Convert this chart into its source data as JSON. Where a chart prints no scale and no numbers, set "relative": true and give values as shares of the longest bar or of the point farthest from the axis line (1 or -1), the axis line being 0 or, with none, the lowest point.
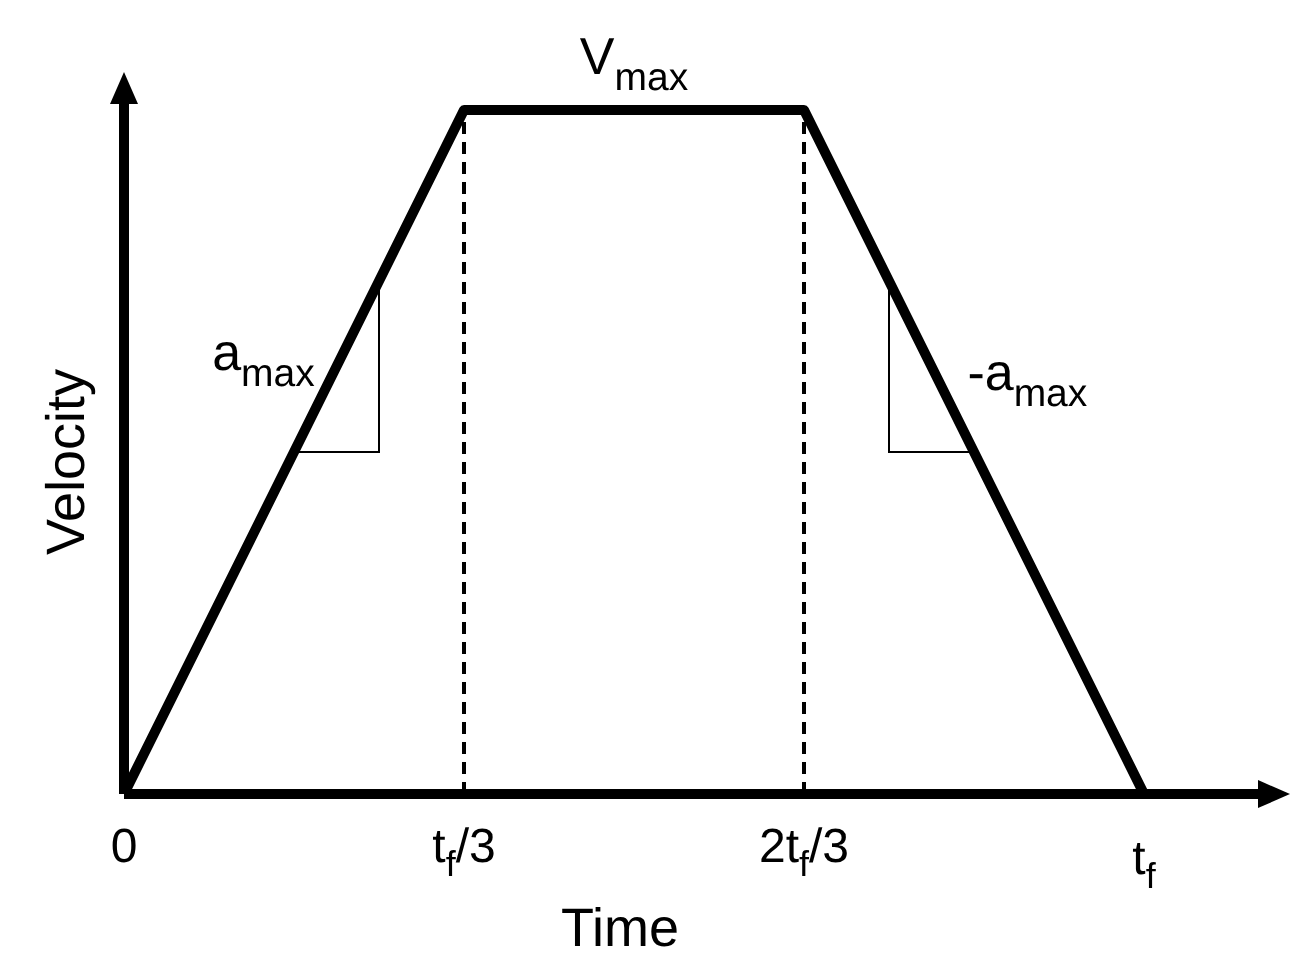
{
  "chart_data": {
    "type": "line",
    "relative": true,
    "xlabel": "Time",
    "ylabel": "Velocity",
    "categories": [
      "0",
      "t$_{f}$/3",
      "2t$_{f}$/3",
      "t$_{f}$"
    ],
    "series": [
      {
        "color": "#000000",
        "values": [
          0,
          1,
          1,
          0
        ]
      }
    ],
    "ref_lines": [
      {
        "axis": "x",
        "value": "t$_{f}$/3",
        "label": null,
        "line_style": "dashed",
        "color": "#000000"
      },
      {
        "axis": "x",
        "value": "2t$_{f}$/3",
        "label": null,
        "line_style": "dashed",
        "color": "#000000"
      }
    ],
    "annotations": [
      "a$_{max}$",
      "V$_{max}$",
      "-a$_{max}$"
    ],
    "marker": "none",
    "line_style": "solid"
  }
}
